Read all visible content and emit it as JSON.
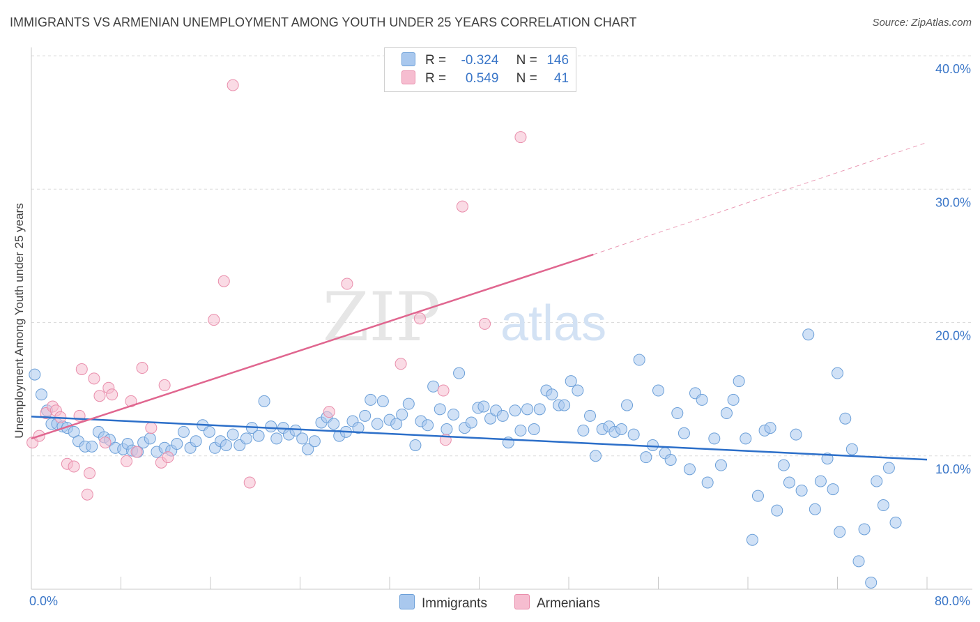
{
  "title": "IMMIGRANTS VS ARMENIAN UNEMPLOYMENT AMONG YOUTH UNDER 25 YEARS CORRELATION CHART",
  "source": "Source: ZipAtlas.com",
  "watermark": {
    "zip": "ZIP",
    "atlas": "atlas"
  },
  "legend": {
    "r_label": "R =",
    "n_label": "N =",
    "rows": [
      {
        "name": "Immigrants",
        "r": "-0.324",
        "n": "146"
      },
      {
        "name": "Armenians",
        "r": "0.549",
        "n": "41"
      }
    ]
  },
  "colors": {
    "immigrants_fill": "#a9c8ee",
    "immigrants_stroke": "#6b9fd8",
    "immigrants_line": "#2c6fc9",
    "armenians_fill": "#f6bdd0",
    "armenians_stroke": "#e98dab",
    "armenians_line": "#e0668f",
    "grid": "#dcdcdc",
    "tick_label": "#3a76c8"
  },
  "chart_data": {
    "type": "scatter",
    "title": "IMMIGRANTS VS ARMENIAN UNEMPLOYMENT AMONG YOUTH UNDER 25 YEARS CORRELATION CHART",
    "xlabel": "",
    "ylabel": "Unemployment Among Youth under 25 years",
    "xlim": [
      0,
      80
    ],
    "ylim": [
      0,
      40
    ],
    "x_tick_labels": [
      "0.0%",
      "80.0%"
    ],
    "y_ticks": [
      10,
      20,
      30,
      40
    ],
    "y_tick_labels": [
      "10.0%",
      "20.0%",
      "30.0%",
      "40.0%"
    ],
    "grid": "horizontal dashed",
    "legend_position": "top-center",
    "series": [
      {
        "name": "Immigrants",
        "trend": {
          "x": [
            0,
            80
          ],
          "y": [
            12.95,
            9.72
          ],
          "dashed_extension": false
        },
        "points": [
          [
            0.3,
            16.1
          ],
          [
            0.9,
            14.6
          ],
          [
            1.4,
            13.4
          ],
          [
            1.8,
            12.4
          ],
          [
            2.3,
            12.4
          ],
          [
            2.8,
            12.2
          ],
          [
            3.2,
            12.1
          ],
          [
            3.8,
            11.8
          ],
          [
            4.2,
            11.1
          ],
          [
            4.8,
            10.7
          ],
          [
            5.4,
            10.7
          ],
          [
            6.0,
            11.8
          ],
          [
            6.5,
            11.4
          ],
          [
            7.0,
            11.2
          ],
          [
            7.5,
            10.6
          ],
          [
            8.2,
            10.5
          ],
          [
            8.6,
            10.9
          ],
          [
            9.0,
            10.4
          ],
          [
            9.5,
            10.3
          ],
          [
            10.0,
            11.0
          ],
          [
            10.6,
            11.3
          ],
          [
            11.2,
            10.3
          ],
          [
            11.9,
            10.6
          ],
          [
            12.5,
            10.4
          ],
          [
            13.0,
            10.9
          ],
          [
            13.6,
            11.8
          ],
          [
            14.2,
            10.6
          ],
          [
            14.7,
            11.1
          ],
          [
            15.3,
            12.3
          ],
          [
            15.9,
            11.8
          ],
          [
            16.4,
            10.6
          ],
          [
            16.9,
            11.1
          ],
          [
            17.4,
            10.8
          ],
          [
            18.0,
            11.6
          ],
          [
            18.6,
            10.8
          ],
          [
            19.2,
            11.3
          ],
          [
            19.7,
            12.1
          ],
          [
            20.3,
            11.5
          ],
          [
            20.8,
            14.1
          ],
          [
            21.4,
            12.2
          ],
          [
            21.9,
            11.3
          ],
          [
            22.5,
            12.1
          ],
          [
            23.0,
            11.6
          ],
          [
            23.6,
            11.9
          ],
          [
            24.2,
            11.3
          ],
          [
            24.7,
            10.5
          ],
          [
            25.3,
            11.1
          ],
          [
            25.9,
            12.5
          ],
          [
            26.4,
            12.9
          ],
          [
            27.0,
            12.4
          ],
          [
            27.5,
            11.5
          ],
          [
            28.1,
            11.8
          ],
          [
            28.7,
            12.6
          ],
          [
            29.2,
            12.1
          ],
          [
            29.8,
            13.0
          ],
          [
            30.3,
            14.2
          ],
          [
            30.9,
            12.4
          ],
          [
            31.4,
            14.1
          ],
          [
            32.0,
            12.7
          ],
          [
            32.6,
            12.4
          ],
          [
            33.1,
            13.1
          ],
          [
            33.7,
            13.9
          ],
          [
            34.3,
            10.8
          ],
          [
            34.8,
            12.6
          ],
          [
            35.4,
            12.3
          ],
          [
            35.9,
            15.2
          ],
          [
            36.5,
            13.5
          ],
          [
            37.1,
            12.0
          ],
          [
            37.7,
            13.1
          ],
          [
            38.2,
            16.2
          ],
          [
            38.7,
            12.1
          ],
          [
            39.3,
            12.5
          ],
          [
            39.9,
            13.6
          ],
          [
            40.4,
            13.7
          ],
          [
            41.0,
            12.8
          ],
          [
            41.5,
            13.4
          ],
          [
            42.1,
            13.0
          ],
          [
            42.6,
            11.0
          ],
          [
            43.2,
            13.4
          ],
          [
            43.7,
            11.9
          ],
          [
            44.3,
            13.5
          ],
          [
            44.9,
            12.0
          ],
          [
            45.4,
            13.5
          ],
          [
            46.0,
            14.9
          ],
          [
            46.5,
            14.6
          ],
          [
            47.1,
            13.8
          ],
          [
            47.6,
            13.8
          ],
          [
            48.2,
            15.6
          ],
          [
            48.8,
            14.9
          ],
          [
            49.3,
            11.9
          ],
          [
            49.9,
            13.0
          ],
          [
            50.4,
            10.0
          ],
          [
            51.0,
            12.0
          ],
          [
            51.6,
            12.2
          ],
          [
            52.1,
            11.8
          ],
          [
            52.7,
            12.0
          ],
          [
            53.2,
            13.8
          ],
          [
            53.8,
            11.6
          ],
          [
            54.3,
            17.2
          ],
          [
            54.9,
            9.9
          ],
          [
            55.5,
            10.8
          ],
          [
            56.0,
            14.9
          ],
          [
            56.6,
            10.2
          ],
          [
            57.1,
            9.7
          ],
          [
            57.7,
            13.2
          ],
          [
            58.3,
            11.7
          ],
          [
            58.8,
            9.0
          ],
          [
            59.3,
            14.7
          ],
          [
            59.9,
            14.2
          ],
          [
            60.4,
            8.0
          ],
          [
            61.0,
            11.3
          ],
          [
            61.6,
            9.3
          ],
          [
            62.1,
            13.2
          ],
          [
            62.7,
            14.2
          ],
          [
            63.2,
            15.6
          ],
          [
            63.8,
            11.3
          ],
          [
            64.4,
            3.7
          ],
          [
            64.9,
            7.0
          ],
          [
            65.5,
            11.9
          ],
          [
            66.0,
            12.1
          ],
          [
            66.6,
            5.9
          ],
          [
            67.2,
            9.3
          ],
          [
            67.7,
            8.0
          ],
          [
            68.3,
            11.6
          ],
          [
            68.8,
            7.4
          ],
          [
            69.4,
            19.1
          ],
          [
            70.0,
            6.0
          ],
          [
            70.5,
            8.1
          ],
          [
            71.1,
            9.8
          ],
          [
            71.6,
            7.5
          ],
          [
            72.2,
            4.3
          ],
          [
            72.7,
            12.8
          ],
          [
            73.3,
            10.5
          ],
          [
            73.9,
            2.1
          ],
          [
            74.4,
            4.5
          ],
          [
            75.0,
            0.5
          ],
          [
            75.5,
            8.1
          ],
          [
            76.1,
            6.3
          ],
          [
            76.6,
            9.1
          ],
          [
            72.0,
            16.2
          ],
          [
            77.2,
            5.0
          ]
        ]
      },
      {
        "name": "Armenians",
        "trend": {
          "x": [
            0,
            50.2
          ],
          "y": [
            11.3,
            25.1
          ],
          "dashed_extension": {
            "x": [
              50.2,
              80
            ],
            "y": [
              25.1,
              33.5
            ]
          }
        },
        "points": [
          [
            0.1,
            11.0
          ],
          [
            0.7,
            11.5
          ],
          [
            1.3,
            13.2
          ],
          [
            1.9,
            13.7
          ],
          [
            2.2,
            13.4
          ],
          [
            2.6,
            12.9
          ],
          [
            3.2,
            9.4
          ],
          [
            3.8,
            9.2
          ],
          [
            4.3,
            13.0
          ],
          [
            4.5,
            16.5
          ],
          [
            5.0,
            7.1
          ],
          [
            5.2,
            8.7
          ],
          [
            5.6,
            15.8
          ],
          [
            6.1,
            14.5
          ],
          [
            6.6,
            11.0
          ],
          [
            6.9,
            15.1
          ],
          [
            7.2,
            14.6
          ],
          [
            8.5,
            9.6
          ],
          [
            8.9,
            14.1
          ],
          [
            9.4,
            10.3
          ],
          [
            9.9,
            16.6
          ],
          [
            10.7,
            12.1
          ],
          [
            11.6,
            9.5
          ],
          [
            11.9,
            15.3
          ],
          [
            12.2,
            9.9
          ],
          [
            16.3,
            20.2
          ],
          [
            17.2,
            23.1
          ],
          [
            18.0,
            37.8
          ],
          [
            19.5,
            8.0
          ],
          [
            26.6,
            13.3
          ],
          [
            28.2,
            22.9
          ],
          [
            33.0,
            16.9
          ],
          [
            34.7,
            20.3
          ],
          [
            36.8,
            14.9
          ],
          [
            37.0,
            11.2
          ],
          [
            38.5,
            28.7
          ],
          [
            40.5,
            19.9
          ],
          [
            43.7,
            33.9
          ]
        ]
      }
    ]
  }
}
